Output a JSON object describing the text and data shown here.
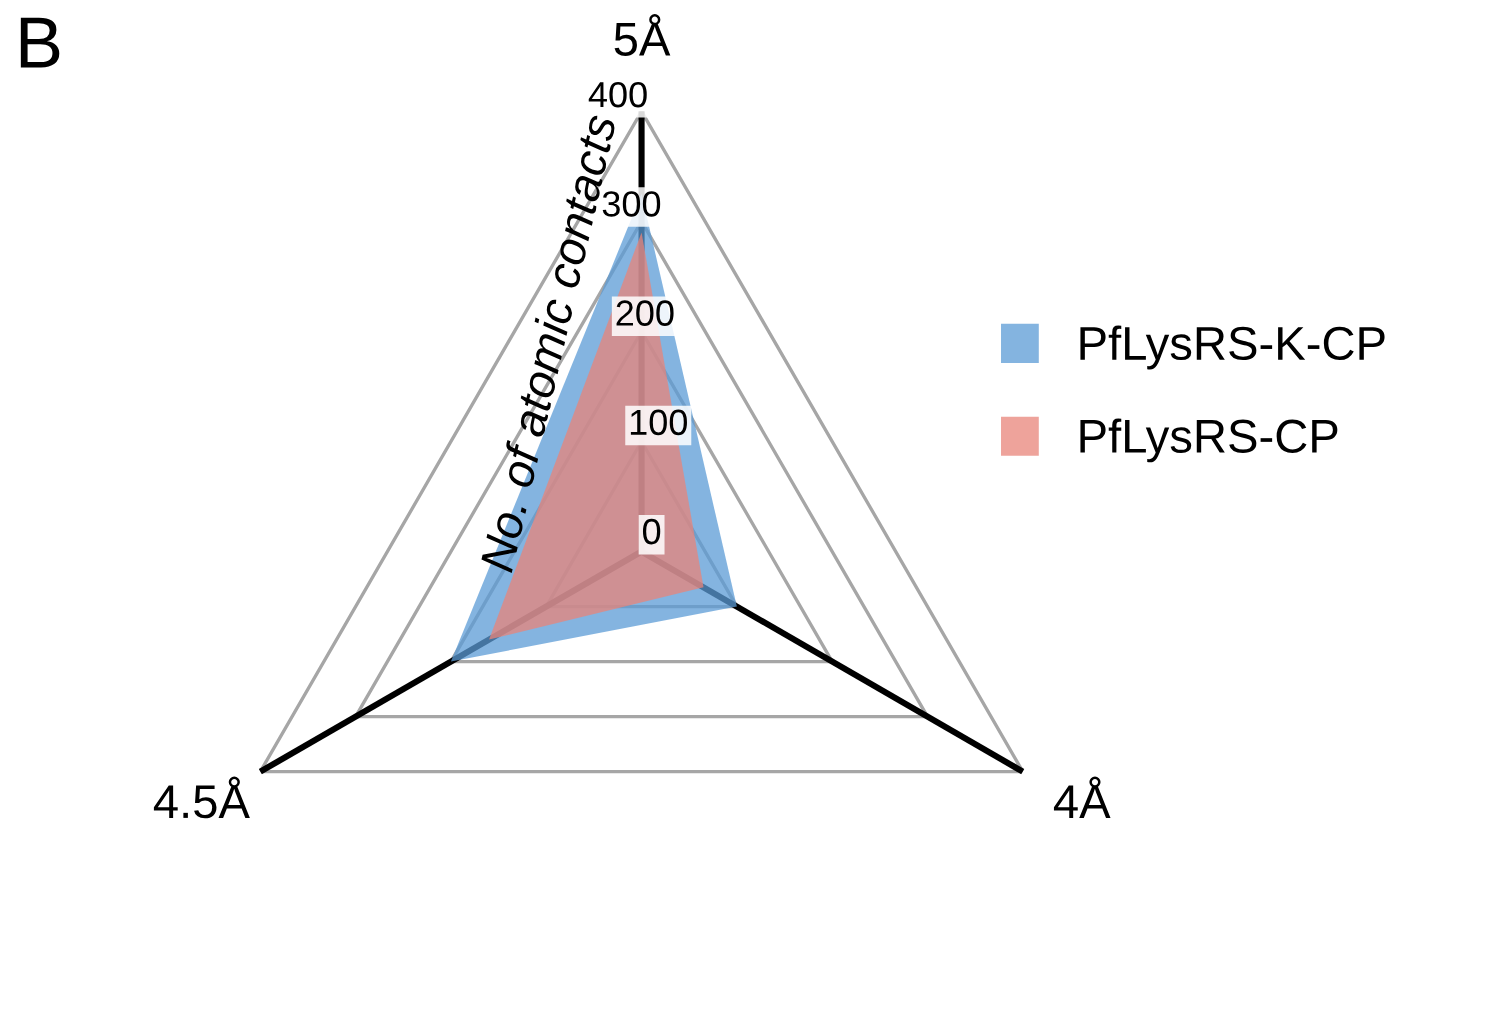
{
  "chart_data": {
    "type": "radar",
    "annotations": [
      "B"
    ],
    "ylabel": "No. of atomic contacts",
    "categories": [
      "5Å",
      "4Å",
      "4.5Å"
    ],
    "series": [
      {
        "name": "PfLysRS-K-CP",
        "color": "#5b9bd5",
        "values": [
          325,
          100,
          200
        ]
      },
      {
        "name": "PfLysRS-CP",
        "color": "#e8847a",
        "values": [
          290,
          65,
          160
        ]
      }
    ],
    "ylim": [
      0,
      400
    ],
    "yticks": [
      0,
      100,
      200,
      300,
      400
    ],
    "grid": true,
    "legend": "right"
  }
}
